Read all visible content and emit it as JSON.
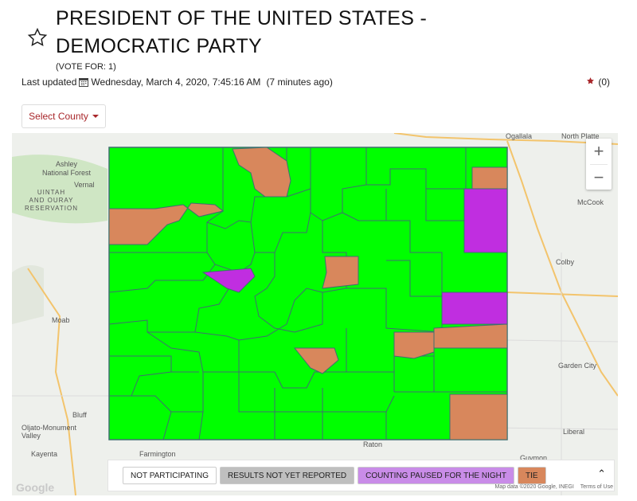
{
  "page": {
    "title_line1": "PRESIDENT OF THE UNITED STATES -",
    "title_line2": "DEMOCRATIC PARTY",
    "vote_for": "(VOTE FOR: 1)",
    "last_updated_label": "Last updated",
    "last_updated_value": "Wednesday, March 4, 2020, 7:45:16 AM",
    "last_updated_ago": "(7 minutes ago)",
    "favorite_count": "(0)"
  },
  "controls": {
    "select_county_label": "Select County",
    "zoom_in": "+",
    "zoom_out": "−"
  },
  "legend": {
    "not_participating": "NOT PARTICIPATING",
    "not_reported": "RESULTS NOT YET REPORTED",
    "counting_paused": "COUNTING PAUSED FOR THE NIGHT",
    "tie": "TIE",
    "collapse": "⌃"
  },
  "map_labels": {
    "ashley": "Ashley\nNational Forest",
    "vernal": "Vernal",
    "uintah": "UINTAH\nAND OURAY\nRESERVATION",
    "moab": "Moab",
    "bluff": "Bluff",
    "ojito": "Oljato-Monument\nValley",
    "kayenta": "Kayenta",
    "farmington": "Farmington",
    "raton": "Raton",
    "guymon": "Guymon",
    "liberal": "Liberal",
    "garden_city": "Garden City",
    "colby": "Colby",
    "mccook": "McCook",
    "ogallala": "Ogallala",
    "north_platte": "North Platte"
  },
  "attribution": {
    "google": "Google",
    "map_data": "Map data ©2020 Google, INEGI",
    "terms": "Terms of Use"
  },
  "colors": {
    "green": "#00ff00",
    "tie": "#d8875c",
    "paused": "#c02ee0",
    "border": "#3f6f6f"
  }
}
